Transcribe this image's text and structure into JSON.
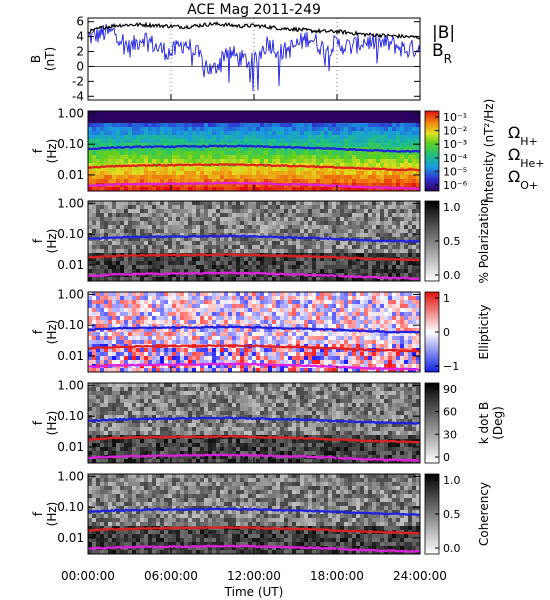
{
  "chart_data": [
    {
      "type": "line",
      "title": "ACE Mag 2011-249",
      "ylabel": "B",
      "ylabel_unit": "(nT)",
      "ylim": [
        -4.5,
        6.5
      ],
      "yticks": [
        "6",
        "4",
        "2",
        "0",
        "-2",
        "-4"
      ],
      "ytick_values": [
        6,
        4,
        2,
        0,
        -2,
        -4
      ],
      "series": [
        {
          "name": "|B|",
          "color": "#000000",
          "x_hours": [
            0,
            1,
            2,
            3,
            4,
            5,
            6,
            7,
            8,
            9,
            10,
            11,
            12,
            13,
            14,
            15,
            16,
            17,
            18,
            19,
            20,
            21,
            22,
            23,
            24
          ],
          "values": [
            4.6,
            5.2,
            5.5,
            5.6,
            5.6,
            5.5,
            5.4,
            5.3,
            5.5,
            5.7,
            5.6,
            5.4,
            5.5,
            5.3,
            5.1,
            5.0,
            4.8,
            4.7,
            4.7,
            4.5,
            4.3,
            4.2,
            4.1,
            4.0,
            3.9
          ]
        },
        {
          "name": "B",
          "subscript": "R",
          "color": "#2020e0",
          "x_hours": [
            0,
            1,
            2,
            3,
            4,
            5,
            6,
            7,
            8,
            9,
            10,
            11,
            12,
            13,
            14,
            15,
            16,
            17,
            18,
            19,
            20,
            21,
            22,
            23,
            24
          ],
          "values": [
            3.8,
            4.4,
            4.6,
            2.4,
            4.0,
            2.5,
            1.8,
            3.2,
            1.4,
            -0.8,
            2.2,
            1.0,
            0.5,
            3.3,
            1.8,
            2.8,
            4.0,
            2.4,
            3.0,
            2.6,
            3.4,
            3.1,
            3.0,
            2.2,
            2.6
          ]
        }
      ]
    },
    {
      "type": "heatmap",
      "ylabel": "f",
      "ylabel_unit": "(Hz)",
      "colorbar_label": "Intensity (nT²/Hz)",
      "colorbar_ticks": [
        "10⁻¹",
        "10⁻²",
        "10⁻³",
        "10⁻⁴",
        "10⁻⁵",
        "10⁻⁶"
      ],
      "legend": [
        {
          "symbol": "Ω",
          "subscript": "H+",
          "color": "#2020e0"
        },
        {
          "symbol": "Ω",
          "subscript": "He+",
          "color": "#e02020"
        },
        {
          "symbol": "Ω",
          "subscript": "O+",
          "color": "#e020e0"
        }
      ]
    },
    {
      "type": "heatmap",
      "ylabel": "f",
      "ylabel_unit": "(Hz)",
      "colorbar_label": "% Polarization",
      "colorbar_ticks": [
        "1.0",
        "0.5",
        "0.0"
      ]
    },
    {
      "type": "heatmap",
      "ylabel": "f",
      "ylabel_unit": "(Hz)",
      "colorbar_label": "Ellipticity",
      "colorbar_ticks": [
        "1",
        "0",
        "−1"
      ]
    },
    {
      "type": "heatmap",
      "ylabel": "f",
      "ylabel_unit": "(Hz)",
      "colorbar_label": "k dot B",
      "colorbar_label_2": "(Deg)",
      "colorbar_ticks": [
        "90",
        "60",
        "30",
        "0"
      ]
    },
    {
      "type": "heatmap",
      "ylabel": "f",
      "ylabel_unit": "(Hz)",
      "colorbar_label": "Coherency",
      "colorbar_ticks": [
        "1.0",
        "0.5",
        "0.0"
      ]
    }
  ],
  "shared": {
    "freq_ticks": [
      "1.00",
      "0.10",
      "0.01"
    ],
    "ylim_hz": [
      0.003,
      1.2
    ],
    "xlim_hours": [
      0,
      24
    ],
    "xticks": [
      "00:00:00",
      "06:00:00",
      "12:00:00",
      "18:00:00",
      "24:00:00"
    ],
    "xtick_hours": [
      0,
      6,
      12,
      18,
      24
    ],
    "xlabel": "Time (UT)",
    "gyro_lines": [
      {
        "name": "Ω H+",
        "color": "#2020e0",
        "x_hours": [
          0,
          2,
          4,
          6,
          8,
          10,
          12,
          14,
          16,
          18,
          20,
          22,
          24
        ],
        "values": [
          0.07,
          0.078,
          0.082,
          0.083,
          0.085,
          0.087,
          0.085,
          0.08,
          0.076,
          0.07,
          0.064,
          0.06,
          0.058
        ]
      },
      {
        "name": "Ω He+",
        "color": "#e02020",
        "x_hours": [
          0,
          2,
          4,
          6,
          8,
          10,
          12,
          14,
          16,
          18,
          20,
          22,
          24
        ],
        "values": [
          0.0175,
          0.0195,
          0.0205,
          0.0208,
          0.0212,
          0.0218,
          0.0212,
          0.02,
          0.019,
          0.0175,
          0.016,
          0.015,
          0.0145
        ]
      },
      {
        "name": "Ω O+",
        "color": "#e020e0",
        "x_hours": [
          0,
          2,
          4,
          6,
          8,
          10,
          12,
          14,
          16,
          18,
          20,
          22,
          24
        ],
        "values": [
          0.0044,
          0.0049,
          0.0051,
          0.0052,
          0.0053,
          0.0055,
          0.0053,
          0.005,
          0.0048,
          0.0044,
          0.004,
          0.0038,
          0.0036
        ]
      }
    ]
  }
}
